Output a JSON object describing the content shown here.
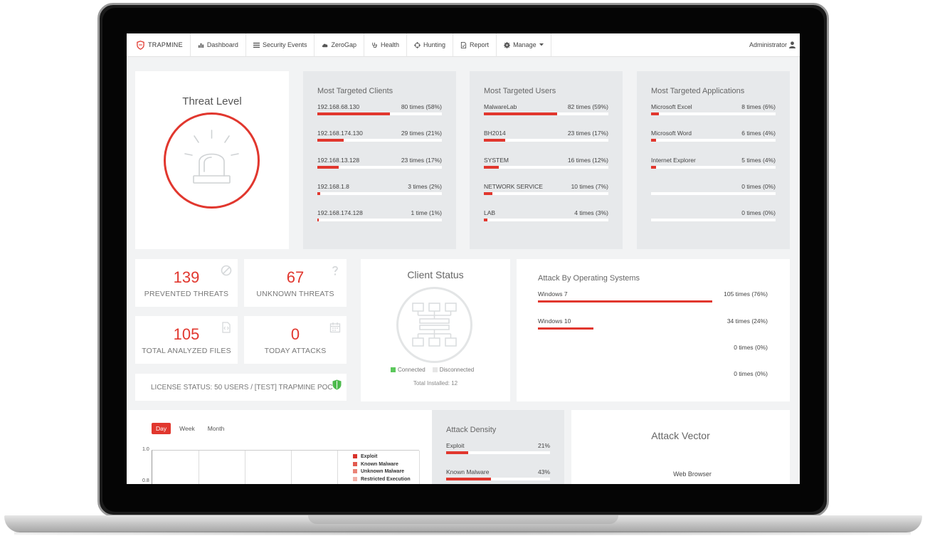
{
  "nav": {
    "brand": "TRAPMINE",
    "items": [
      {
        "label": "Dashboard",
        "icon": "bar-chart-icon"
      },
      {
        "label": "Security Events",
        "icon": "list-icon"
      },
      {
        "label": "ZeroGap",
        "icon": "cloud-icon"
      },
      {
        "label": "Health",
        "icon": "stethoscope-icon"
      },
      {
        "label": "Hunting",
        "icon": "crosshair-icon"
      },
      {
        "label": "Report",
        "icon": "file-icon"
      },
      {
        "label": "Manage",
        "icon": "gear-icon"
      }
    ],
    "user": "Administrator"
  },
  "threat_level": {
    "title": "Threat Level"
  },
  "most_targeted_clients": {
    "title": "Most Targeted Clients",
    "rows": [
      {
        "label": "192.168.68.130",
        "value": "80 times (58%)",
        "pct": 58
      },
      {
        "label": "192.168.174.130",
        "value": "29 times (21%)",
        "pct": 21
      },
      {
        "label": "192.168.13.128",
        "value": "23 times (17%)",
        "pct": 17
      },
      {
        "label": "192.168.1.8",
        "value": "3 times (2%)",
        "pct": 2
      },
      {
        "label": "192.168.174.128",
        "value": "1 time (1%)",
        "pct": 1
      }
    ]
  },
  "most_targeted_users": {
    "title": "Most Targeted Users",
    "rows": [
      {
        "label": "MalwareLab",
        "value": "82 times (59%)",
        "pct": 59
      },
      {
        "label": "BH2014",
        "value": "23 times (17%)",
        "pct": 17
      },
      {
        "label": "SYSTEM",
        "value": "16 times (12%)",
        "pct": 12
      },
      {
        "label": "NETWORK SERVICE",
        "value": "10 times (7%)",
        "pct": 7
      },
      {
        "label": "LAB",
        "value": "4 times (3%)",
        "pct": 3
      }
    ]
  },
  "most_targeted_applications": {
    "title": "Most Targeted Applications",
    "rows": [
      {
        "label": "Microsoft Excel",
        "value": "8 times (6%)",
        "pct": 6
      },
      {
        "label": "Microsoft Word",
        "value": "6 times (4%)",
        "pct": 4
      },
      {
        "label": "Internet Explorer",
        "value": "5 times (4%)",
        "pct": 4
      },
      {
        "label": "",
        "value": "0 times (0%)",
        "pct": 0
      },
      {
        "label": "",
        "value": "0 times (0%)",
        "pct": 0
      }
    ]
  },
  "stats": {
    "prevented": {
      "value": "139",
      "label": "PREVENTED THREATS"
    },
    "unknown": {
      "value": "67",
      "label": "UNKNOWN THREATS"
    },
    "analyzed": {
      "value": "105",
      "label": "TOTAL ANALYZED FILES"
    },
    "today": {
      "value": "0",
      "label": "TODAY ATTACKS"
    }
  },
  "license": {
    "text": "LICENSE STATUS: 50 USERS / [TEST] TRAPMINE POC"
  },
  "client_status": {
    "title": "Client Status",
    "connected": "Connected",
    "disconnected": "Disconnected",
    "total": "Total Installed: 12"
  },
  "attack_os": {
    "title": "Attack By Operating Systems",
    "rows": [
      {
        "label": "Windows 7",
        "value": "105 times (76%)",
        "pct": 76
      },
      {
        "label": "Windows 10",
        "value": "34 times (24%)",
        "pct": 24
      },
      {
        "label": "",
        "value": "0 times (0%)",
        "pct": 0
      },
      {
        "label": "",
        "value": "0 times (0%)",
        "pct": 0
      }
    ]
  },
  "timeline": {
    "tabs": [
      "Day",
      "Week",
      "Month"
    ],
    "active_tab": "Day",
    "yticks": [
      "1.0",
      "0.8"
    ],
    "legend": [
      {
        "name": "Exploit",
        "color": "#d9322b"
      },
      {
        "name": "Known Malware",
        "color": "#e25a4f"
      },
      {
        "name": "Unknown Malware",
        "color": "#ea8478"
      },
      {
        "name": "Restricted Execution",
        "color": "#f2b0a8"
      }
    ]
  },
  "attack_density": {
    "title": "Attack Density",
    "rows": [
      {
        "label": "Exploit",
        "value": "21%",
        "pct": 21
      },
      {
        "label": "Known Malware",
        "value": "43%",
        "pct": 43
      }
    ]
  },
  "attack_vector": {
    "title": "Attack Vector",
    "node": "Web Browser"
  },
  "colors": {
    "accent": "#e1372e",
    "connected": "#5cc85c",
    "disconnected": "#e6e6e6"
  }
}
